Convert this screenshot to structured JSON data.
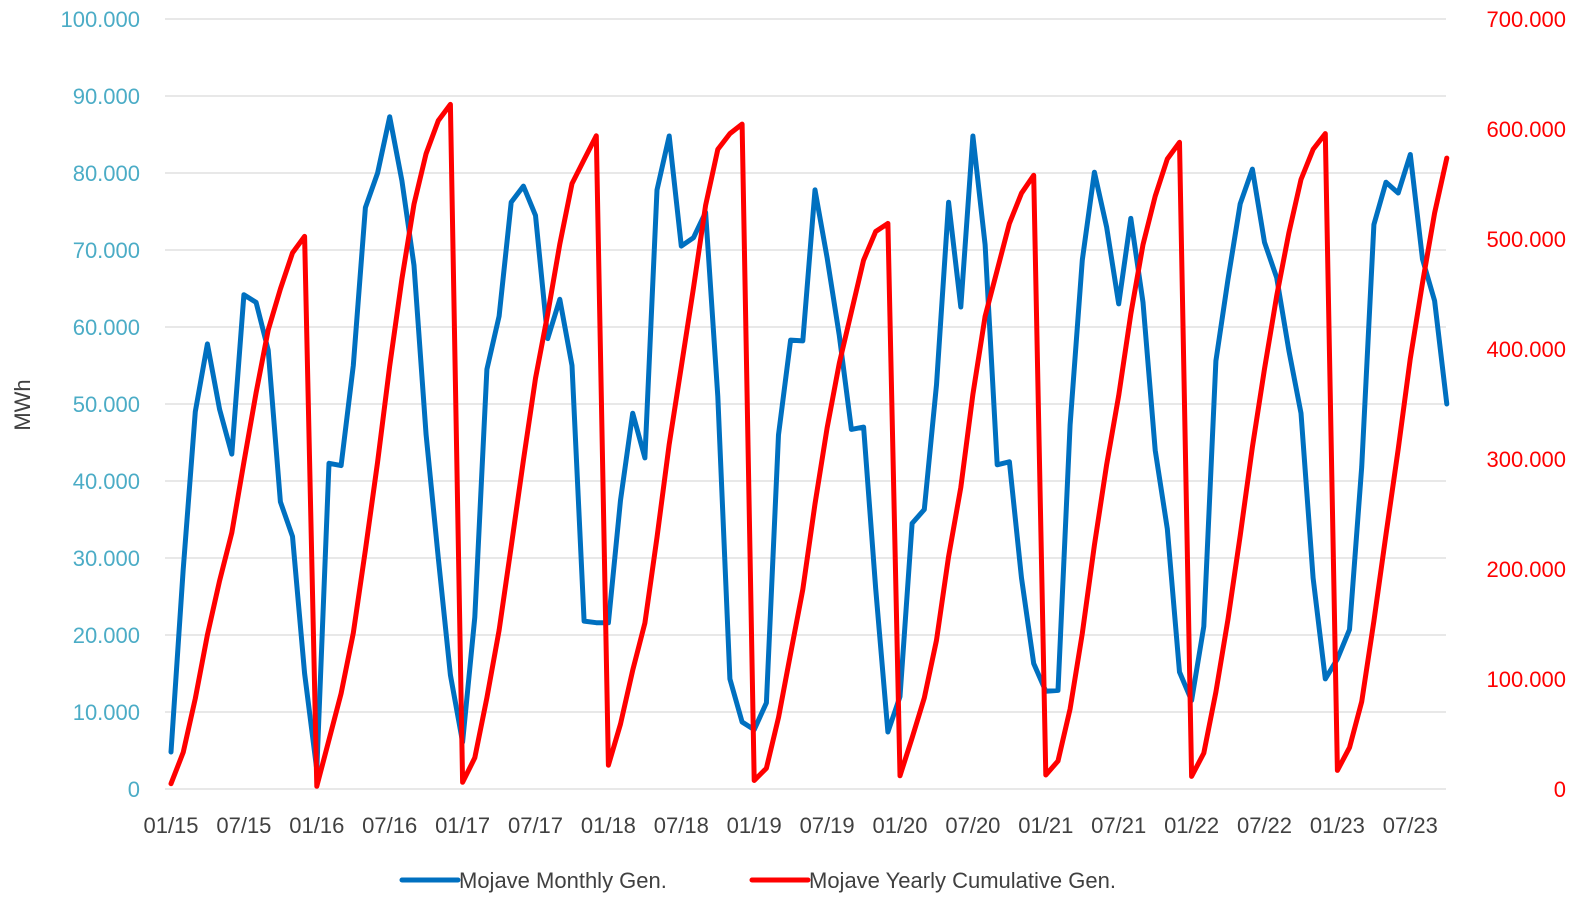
{
  "colors": {
    "left_axis": "#4bacc6",
    "right_axis": "#ff0000",
    "x_axis": "#404040",
    "grid": "#d9d9d9",
    "series_monthly": "#0070c0",
    "series_cumulative": "#ff0000"
  },
  "chart_data": {
    "type": "line",
    "title": "",
    "xlabel": "",
    "ylabel": "MWh",
    "y2label": "",
    "ylim": [
      0,
      100000
    ],
    "y2lim": [
      0,
      700000
    ],
    "y_ticks": [
      "0",
      "10.000",
      "20.000",
      "30.000",
      "40.000",
      "50.000",
      "60.000",
      "70.000",
      "80.000",
      "90.000",
      "100.000"
    ],
    "y2_ticks": [
      "0",
      "100.000",
      "200.000",
      "300.000",
      "400.000",
      "500.000",
      "600.000",
      "700.000"
    ],
    "x_ticks": [
      "01/15",
      "07/15",
      "01/16",
      "07/16",
      "01/17",
      "07/17",
      "01/18",
      "07/18",
      "01/19",
      "07/19",
      "01/20",
      "07/20",
      "01/21",
      "07/21",
      "01/22",
      "07/22",
      "01/23",
      "07/23"
    ],
    "grid": true,
    "legend_position": "bottom",
    "series": [
      {
        "name": "Mojave Monthly Gen.",
        "axis": "left",
        "values": [
          4800,
          28500,
          49000,
          57800,
          49300,
          43500,
          64200,
          63200,
          57000,
          37300,
          32800,
          15000,
          2500,
          42300,
          42000,
          55000,
          75500,
          80000,
          87300,
          79000,
          68000,
          46000,
          30000,
          14800,
          6100,
          22300,
          54500,
          61400,
          76200,
          78300,
          74500,
          58500,
          63600,
          55000,
          21800,
          21600,
          21600,
          37500,
          48800,
          43000,
          77800,
          84800,
          70500,
          71600,
          74900,
          51000,
          14300,
          8700,
          7700,
          11200,
          46000,
          58300,
          58200,
          77800,
          69000,
          58900,
          46700,
          47000,
          26000,
          7400,
          12000,
          34500,
          36300,
          52500,
          76200,
          62600,
          84800,
          70700,
          42100,
          42500,
          27400,
          16300,
          12700,
          12800,
          47300,
          68700,
          80100,
          73000,
          63000,
          74100,
          63200,
          44000,
          33800,
          15200,
          11500,
          21100,
          55600,
          66200,
          76000,
          80500,
          71000,
          66400,
          57000,
          48800,
          27400,
          14300,
          16900,
          20700,
          41800,
          73300,
          78800,
          77400,
          82400,
          68800,
          63400,
          50000
        ]
      },
      {
        "name": "Mojave Yearly Cumulative Gen.",
        "axis": "right",
        "values": [
          4800,
          33300,
          82300,
          140100,
          189400,
          232900,
          297100,
          360300,
          417300,
          454600,
          487400,
          502400,
          2500,
          44800,
          86800,
          141800,
          217300,
          297300,
          384600,
          463600,
          531600,
          577600,
          607600,
          622400,
          6100,
          28400,
          82900,
          144300,
          220500,
          298800,
          373300,
          431800,
          495400,
          550400,
          572200,
          593800,
          21600,
          59100,
          107900,
          150900,
          228700,
          313500,
          384000,
          455600,
          530500,
          581500,
          595800,
          604500,
          7700,
          18900,
          64900,
          123200,
          181400,
          259200,
          328200,
          387100,
          433800,
          480800,
          506800,
          514200,
          12000,
          46500,
          82800,
          135300,
          211500,
          274100,
          358900,
          429600,
          471700,
          514200,
          541600,
          557900,
          12700,
          25500,
          72800,
          141500,
          221600,
          294600,
          357600,
          431700,
          494900,
          538900,
          572700,
          587900,
          11500,
          32600,
          88200,
          154400,
          230400,
          310900,
          381900,
          448300,
          505300,
          554100,
          581500,
          595800,
          16900,
          37600,
          79400,
          152700,
          231500,
          308900,
          391300,
          460100,
          523500,
          573500
        ]
      }
    ]
  },
  "legend": {
    "items": [
      {
        "label": "Mojave Monthly Gen."
      },
      {
        "label": "Mojave Yearly Cumulative Gen."
      }
    ]
  }
}
